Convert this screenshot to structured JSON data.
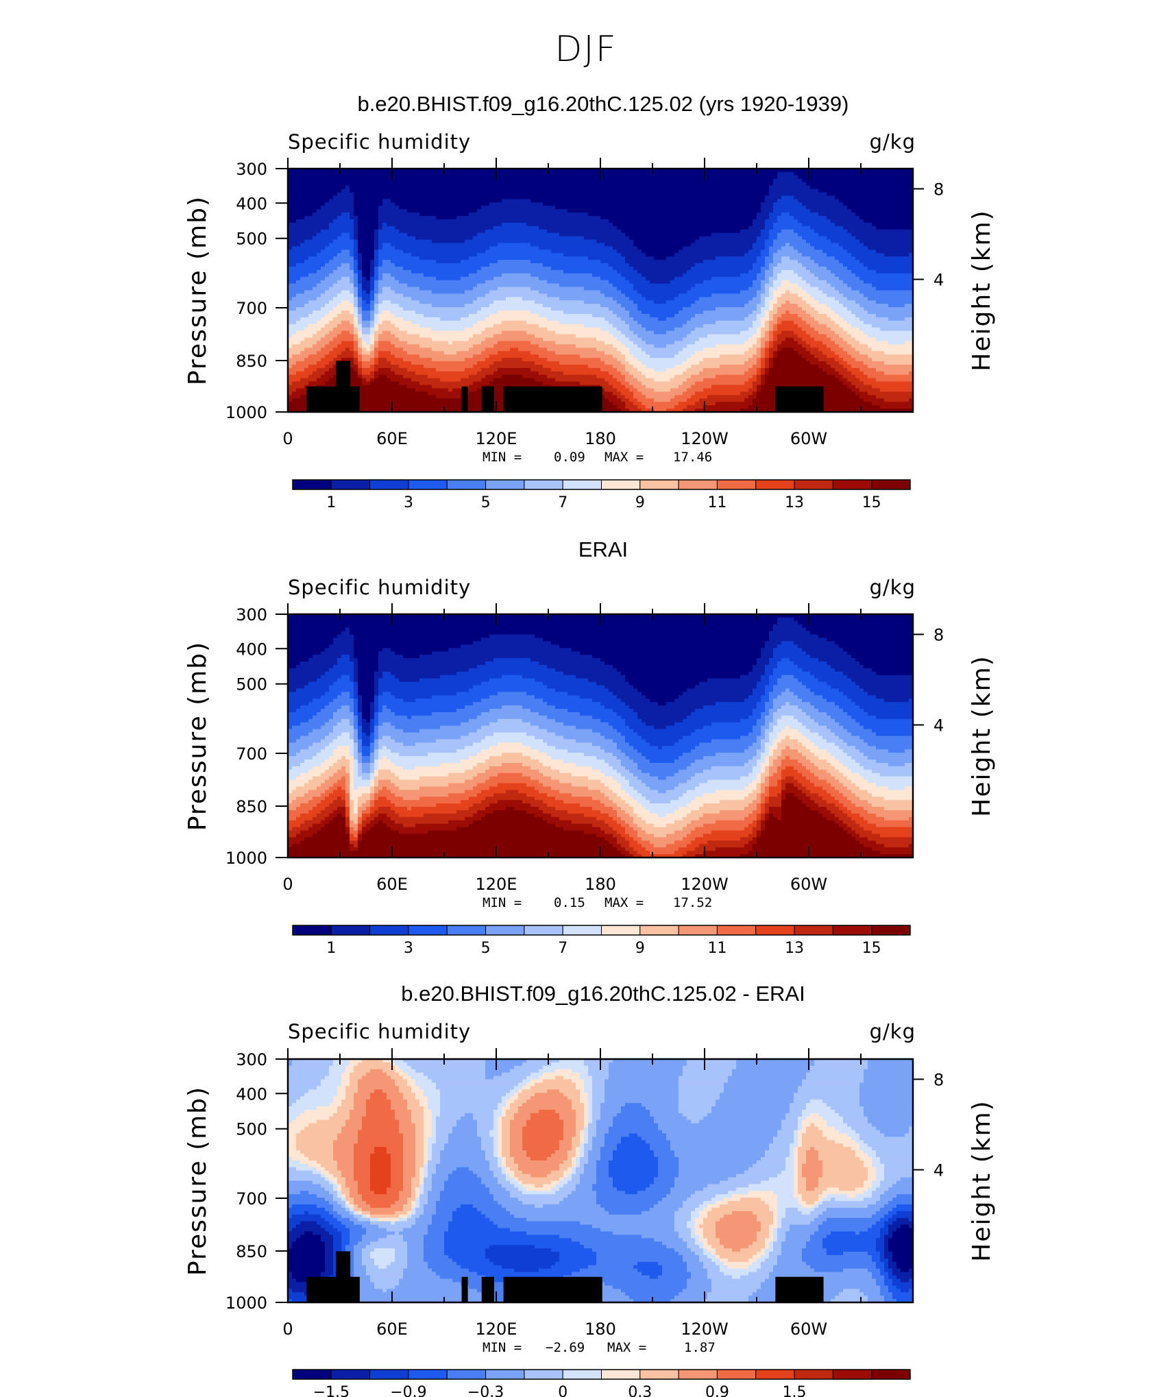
{
  "figure": {
    "title": "DJF",
    "x_ticks": [
      "0",
      "60E",
      "120E",
      "180",
      "120W",
      "60W"
    ],
    "pressure_ticks": [
      "300",
      "400",
      "500",
      "700",
      "850",
      "1000"
    ],
    "height_ticks": [
      "8",
      "4"
    ],
    "ylabel": "Pressure (mb)",
    "y2label": "Height (km)"
  },
  "panels": [
    {
      "title": "b.e20.BHIST.f09_g16.20thC.125.02 (yrs 1920-1939)",
      "left_string": "Specific humidity",
      "right_string": "g/kg",
      "min_label": "MIN =",
      "min_value": "0.09",
      "max_label": "MAX =",
      "max_value": "17.46",
      "colorbar_labels": [
        "1",
        "3",
        "5",
        "7",
        "9",
        "11",
        "13",
        "15"
      ]
    },
    {
      "title": "ERAI",
      "left_string": "Specific humidity",
      "right_string": "g/kg",
      "min_label": "MIN =",
      "min_value": "0.15",
      "max_label": "MAX =",
      "max_value": "17.52",
      "colorbar_labels": [
        "1",
        "3",
        "5",
        "7",
        "9",
        "11",
        "13",
        "15"
      ]
    },
    {
      "title": "b.e20.BHIST.f09_g16.20thC.125.02 - ERAI",
      "left_string": "Specific humidity",
      "right_string": "g/kg",
      "min_label": "MIN =",
      "min_value": "−2.69",
      "max_label": "MAX =",
      "max_value": "1.87",
      "colorbar_labels": [
        "−1.5",
        "−0.9",
        "−0.3",
        "0",
        "0.3",
        "0.9",
        "1.5"
      ]
    }
  ],
  "colors": {
    "palette": [
      "#00007d",
      "#0a1ea6",
      "#0f3fd2",
      "#1f5aee",
      "#4a7ff4",
      "#7aa3f7",
      "#a7c3fa",
      "#d3e2fc",
      "#fde6d3",
      "#f9c2a2",
      "#f59775",
      "#ef6a45",
      "#e4421c",
      "#c12810",
      "#9b0c04",
      "#7d0000"
    ],
    "topography": "#000000"
  },
  "chart_data": [
    {
      "type": "heatmap",
      "title": "b.e20.BHIST.f09_g16.20thC.125.02 (yrs 1920-1939)",
      "variable": "Specific humidity",
      "units": "g/kg",
      "x": [
        "0",
        "60E",
        "120E",
        "180",
        "120W",
        "60W"
      ],
      "y_pressure": [
        300,
        400,
        500,
        700,
        850,
        1000
      ],
      "contour_levels": [
        1,
        2,
        3,
        4,
        5,
        6,
        7,
        8,
        9,
        10,
        11,
        12,
        13,
        14,
        15
      ],
      "min": 0.09,
      "max": 17.46
    },
    {
      "type": "heatmap",
      "title": "ERAI",
      "variable": "Specific humidity",
      "units": "g/kg",
      "x": [
        "0",
        "60E",
        "120E",
        "180",
        "120W",
        "60W"
      ],
      "y_pressure": [
        300,
        400,
        500,
        700,
        850,
        1000
      ],
      "contour_levels": [
        1,
        2,
        3,
        4,
        5,
        6,
        7,
        8,
        9,
        10,
        11,
        12,
        13,
        14,
        15
      ],
      "min": 0.15,
      "max": 17.52
    },
    {
      "type": "heatmap",
      "title": "b.e20.BHIST.f09_g16.20thC.125.02 - ERAI",
      "variable": "Specific humidity",
      "units": "g/kg",
      "x": [
        "0",
        "60E",
        "120E",
        "180",
        "120W",
        "60W"
      ],
      "y_pressure": [
        300,
        400,
        500,
        700,
        850,
        1000
      ],
      "contour_levels": [
        -1.8,
        -1.5,
        -1.2,
        -0.9,
        -0.6,
        -0.3,
        -0.1,
        0,
        0.1,
        0.3,
        0.6,
        0.9,
        1.2,
        1.5,
        1.8
      ],
      "min": -2.69,
      "max": 1.87
    }
  ]
}
